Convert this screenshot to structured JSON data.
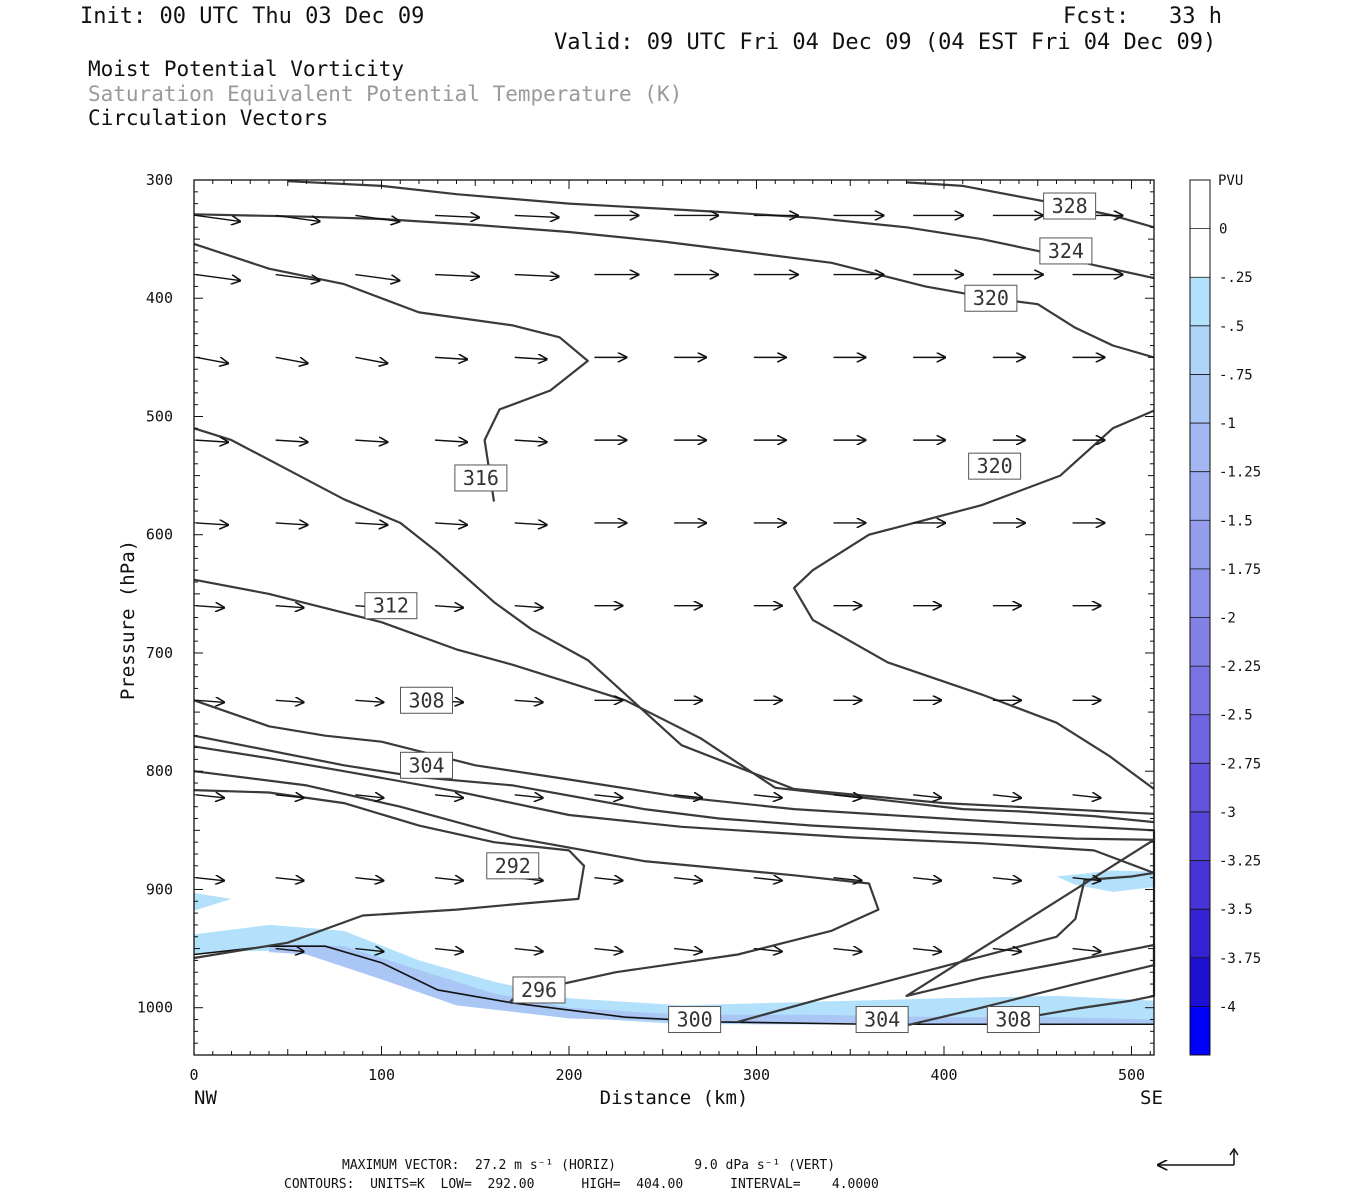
{
  "header": {
    "init": "Init: 00 UTC Thu 03 Dec 09",
    "fcst": "Fcst:   33 h",
    "valid": "Valid: 09 UTC Fri 04 Dec 09 (04 EST Fri 04 Dec 09)"
  },
  "fields": {
    "field1": "Moist Potential Vorticity",
    "field2": "Saturation Equivalent Potential Temperature (K)",
    "field3": "Circulation Vectors",
    "field2_color": "#9a9a9a"
  },
  "footer": {
    "line1": "MAXIMUM VECTOR:  27.2 m s⁻¹ (HORIZ)          9.0 dPa s⁻¹ (VERT)",
    "line2": "CONTOURS:  UNITS=K  LOW=  292.00      HIGH=  404.00      INTERVAL=    4.0000"
  },
  "chart_data": {
    "type": "contour-cross-section",
    "xlabel": "Distance (km)",
    "ylabel": "Pressure (hPa)",
    "x_end_labels": [
      "NW",
      "SE"
    ],
    "xlim": [
      0,
      512
    ],
    "ylim": [
      1040,
      300
    ],
    "x_ticks": [
      0,
      100,
      200,
      300,
      400,
      500
    ],
    "y_ticks": [
      300,
      400,
      500,
      600,
      700,
      800,
      900,
      1000
    ],
    "colorbar": {
      "title": "PVU",
      "levels": [
        "0",
        "-.25",
        "-.5",
        "-.75",
        "-1",
        "-1.25",
        "-1.5",
        "-1.75",
        "-2",
        "-2.25",
        "-2.5",
        "-2.75",
        "-3",
        "-3.25",
        "-3.5",
        "-3.75",
        "-4"
      ],
      "colors": [
        "#ffffff",
        "#ffffff",
        "#b3e0fb",
        "#b0d4f8",
        "#aac6f5",
        "#a3b8f2",
        "#9cabef",
        "#949dec",
        "#8c8fe9",
        "#8381e6",
        "#7a73e3",
        "#6f64e0",
        "#6354dd",
        "#5545da",
        "#4634d7",
        "#3322d4",
        "#1d10d0",
        "#0000ff"
      ]
    },
    "contour_labels": [
      "328",
      "324",
      "320",
      "316",
      "320",
      "312",
      "308",
      "304",
      "292",
      "296",
      "300",
      "304",
      "308"
    ],
    "contours": [
      {
        "value": 292,
        "points": [
          [
            0,
            958
          ],
          [
            50,
            945
          ],
          [
            90,
            922
          ],
          [
            140,
            917
          ],
          [
            175,
            912
          ],
          [
            205,
            908
          ],
          [
            208,
            880
          ],
          [
            200,
            867
          ],
          [
            160,
            860
          ],
          [
            120,
            846
          ],
          [
            80,
            827
          ],
          [
            40,
            818
          ],
          [
            0,
            816
          ]
        ]
      },
      {
        "value": 296,
        "points": [
          [
            168,
            996
          ],
          [
            173,
            988
          ],
          [
            225,
            970
          ],
          [
            290,
            955
          ],
          [
            340,
            935
          ],
          [
            365,
            917
          ],
          [
            360,
            895
          ],
          [
            320,
            888
          ],
          [
            240,
            876
          ],
          [
            170,
            856
          ],
          [
            110,
            830
          ],
          [
            60,
            812
          ],
          [
            0,
            800
          ]
        ]
      },
      {
        "value": 300,
        "points": [
          [
            290,
            1012
          ],
          [
            340,
            990
          ],
          [
            400,
            965
          ],
          [
            460,
            940
          ],
          [
            470,
            925
          ],
          [
            475,
            892
          ],
          [
            500,
            889
          ],
          [
            512,
            886
          ],
          [
            480,
            867
          ],
          [
            420,
            861
          ],
          [
            350,
            856
          ],
          [
            260,
            847
          ],
          [
            200,
            837
          ],
          [
            140,
            817
          ],
          [
            80,
            800
          ],
          [
            40,
            789
          ],
          [
            0,
            779
          ]
        ]
      },
      {
        "value": 304,
        "points": [
          [
            380,
            1015
          ],
          [
            420,
            1000
          ],
          [
            470,
            980
          ],
          [
            512,
            964
          ],
          [
            512,
            947
          ],
          [
            460,
            963
          ],
          [
            420,
            975
          ],
          [
            380,
            990
          ],
          [
            512,
            858
          ],
          [
            470,
            857
          ],
          [
            400,
            852
          ],
          [
            330,
            846
          ],
          [
            280,
            840
          ],
          [
            240,
            832
          ],
          [
            170,
            812
          ],
          [
            120,
            805
          ],
          [
            80,
            795
          ],
          [
            0,
            770
          ]
        ]
      },
      {
        "value": 308,
        "points": [
          [
            430,
            1012
          ],
          [
            470,
            1001
          ],
          [
            500,
            994
          ],
          [
            512,
            990
          ],
          [
            512,
            850
          ],
          [
            440,
            844
          ],
          [
            400,
            840
          ],
          [
            320,
            832
          ],
          [
            260,
            822
          ],
          [
            200,
            807
          ],
          [
            150,
            795
          ],
          [
            100,
            775
          ],
          [
            70,
            770
          ],
          [
            40,
            762
          ],
          [
            0,
            740
          ]
        ]
      },
      {
        "value": 312,
        "points": [
          [
            512,
            843
          ],
          [
            480,
            838
          ],
          [
            440,
            834
          ],
          [
            410,
            832
          ],
          [
            360,
            823
          ],
          [
            310,
            814
          ],
          [
            270,
            772
          ],
          [
            230,
            740
          ],
          [
            170,
            710
          ],
          [
            140,
            697
          ],
          [
            100,
            674
          ],
          [
            40,
            650
          ],
          [
            0,
            638
          ]
        ]
      },
      {
        "value": 316,
        "points": [
          [
            512,
            836
          ],
          [
            450,
            831
          ],
          [
            400,
            827
          ],
          [
            320,
            815
          ],
          [
            260,
            778
          ],
          [
            210,
            706
          ],
          [
            180,
            680
          ],
          [
            160,
            657
          ],
          [
            130,
            615
          ],
          [
            110,
            590
          ],
          [
            80,
            570
          ],
          [
            50,
            545
          ],
          [
            20,
            520
          ],
          [
            0,
            510
          ]
        ]
      },
      {
        "value": 320,
        "points": [
          [
            512,
            815
          ],
          [
            488,
            787
          ],
          [
            460,
            759
          ],
          [
            420,
            735
          ],
          [
            370,
            708
          ],
          [
            330,
            672
          ],
          [
            320,
            645
          ],
          [
            330,
            630
          ],
          [
            360,
            600
          ],
          [
            420,
            575
          ],
          [
            462,
            550
          ],
          [
            490,
            510
          ],
          [
            512,
            495
          ]
        ]
      },
      {
        "value": 316,
        "points": [
          [
            160,
            572
          ],
          [
            155,
            520
          ],
          [
            163,
            494
          ],
          [
            190,
            478
          ],
          [
            210,
            453
          ],
          [
            195,
            433
          ],
          [
            170,
            423
          ],
          [
            120,
            412
          ],
          [
            80,
            388
          ],
          [
            40,
            375
          ],
          [
            0,
            354
          ]
        ]
      },
      {
        "value": 320,
        "points": [
          [
            512,
            450
          ],
          [
            490,
            440
          ],
          [
            470,
            425
          ],
          [
            450,
            405
          ],
          [
            425,
            400
          ],
          [
            390,
            390
          ],
          [
            340,
            370
          ],
          [
            290,
            360
          ],
          [
            250,
            352
          ],
          [
            200,
            344
          ],
          [
            150,
            338
          ],
          [
            100,
            333
          ],
          [
            60,
            331
          ],
          [
            0,
            329
          ]
        ]
      },
      {
        "value": 324,
        "points": [
          [
            512,
            383
          ],
          [
            480,
            372
          ],
          [
            450,
            360
          ],
          [
            420,
            350
          ],
          [
            380,
            340
          ],
          [
            330,
            332
          ],
          [
            280,
            327
          ],
          [
            200,
            320
          ],
          [
            140,
            312
          ],
          [
            100,
            305
          ],
          [
            50,
            301
          ]
        ]
      },
      {
        "value": 328,
        "points": [
          [
            512,
            340
          ],
          [
            490,
            330
          ],
          [
            460,
            320
          ],
          [
            410,
            305
          ],
          [
            380,
            302
          ]
        ]
      }
    ]
  }
}
